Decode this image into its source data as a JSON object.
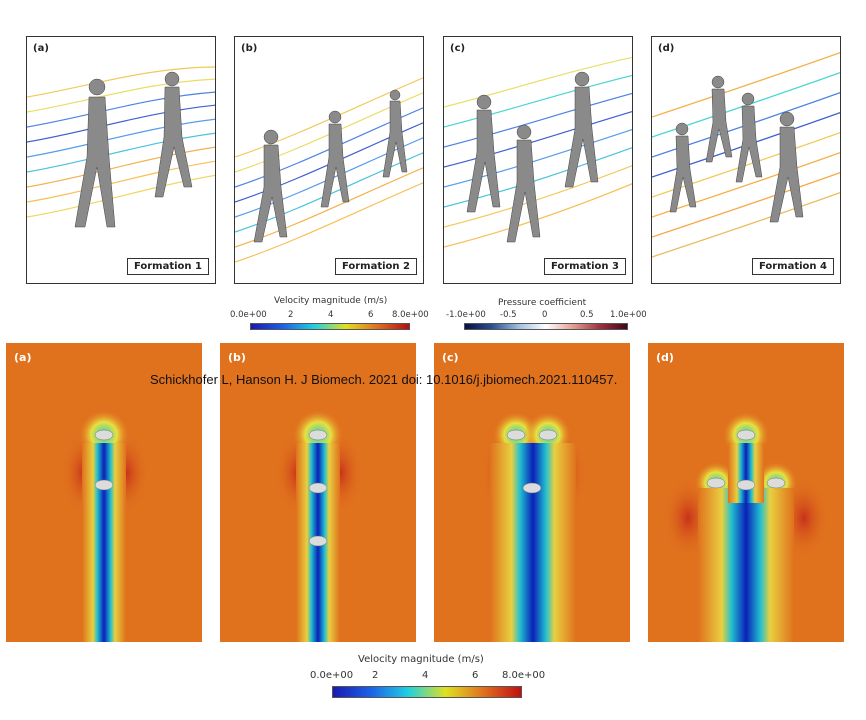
{
  "top_panels": [
    {
      "label": "(a)",
      "formation": "Formation 1"
    },
    {
      "label": "(b)",
      "formation": "Formation 2"
    },
    {
      "label": "(c)",
      "formation": "Formation 3"
    },
    {
      "label": "(d)",
      "formation": "Formation 4"
    }
  ],
  "bottom_panels": [
    {
      "label": "(a)"
    },
    {
      "label": "(b)"
    },
    {
      "label": "(c)"
    },
    {
      "label": "(d)"
    }
  ],
  "colorbars": {
    "velocity_top": {
      "title": "Velocity magnitude (m/s)",
      "ticks": [
        "0.0e+00",
        "2",
        "4",
        "6",
        "8.0e+00"
      ]
    },
    "pressure": {
      "title": "Pressure coefficient",
      "ticks": [
        "-1.0e+00",
        "-0.5",
        "0",
        "0.5",
        "1.0e+00"
      ]
    },
    "velocity_bottom": {
      "title": "Velocity magnitude (m/s)",
      "ticks": [
        "0.0e+00",
        "2",
        "4",
        "6",
        "8.0e+00"
      ]
    }
  },
  "citation": "Schickhofer L, Hanson H. J Biomech. 2021 doi: 10.1016/j.jbiomech.2021.110457.",
  "colors": {
    "background_flow": "#e0711d",
    "wake_core": "#0a1fb8",
    "runner": "#cfcfcf"
  }
}
